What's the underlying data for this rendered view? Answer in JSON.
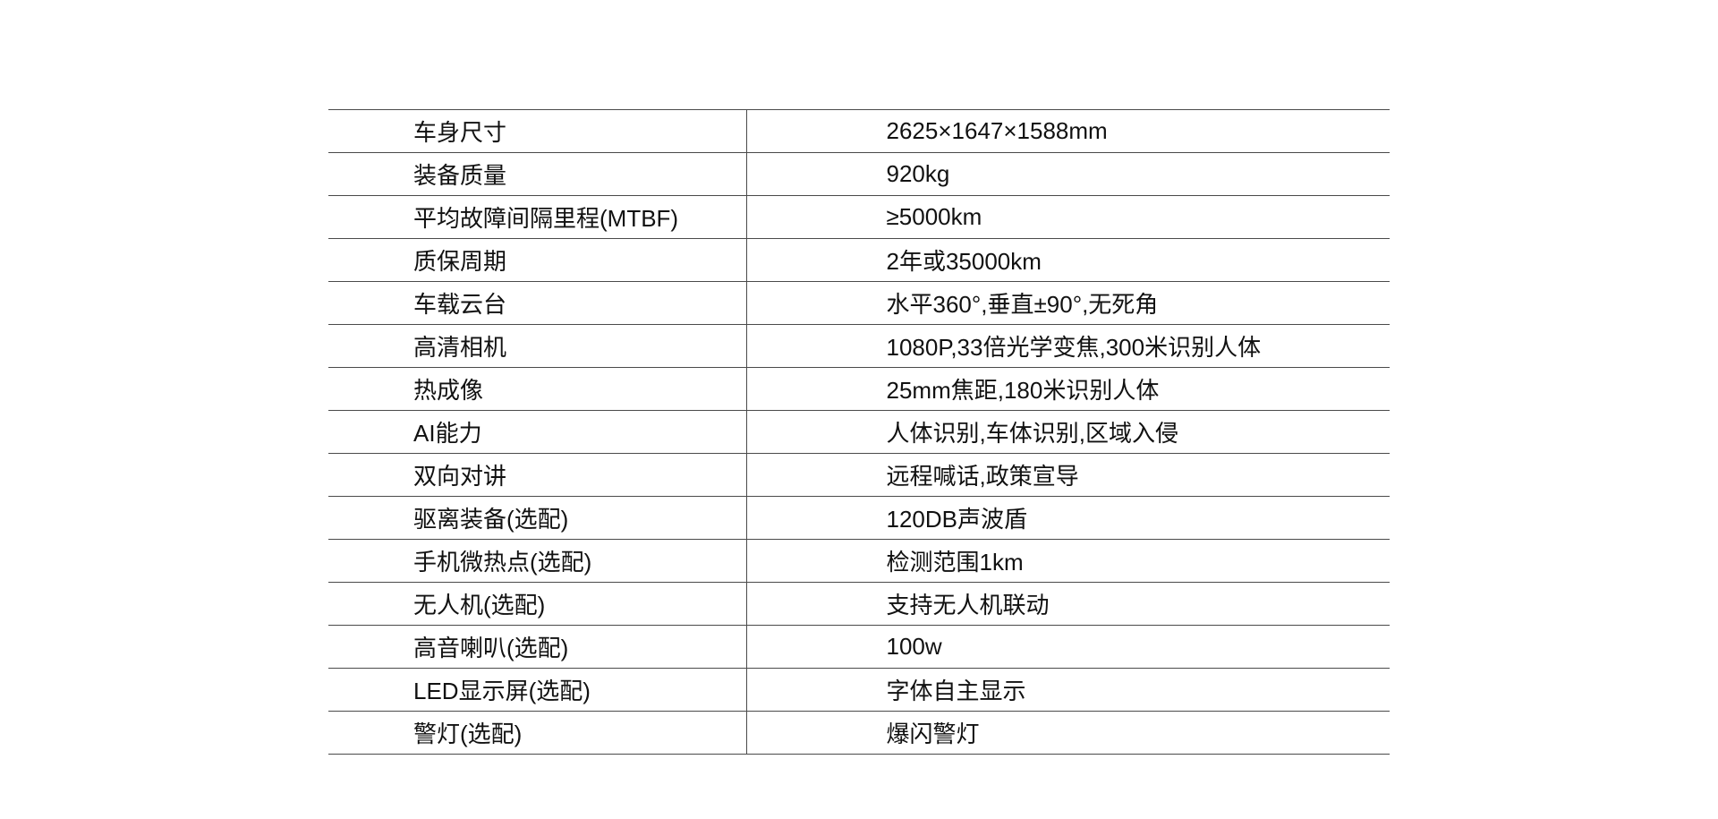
{
  "page": {
    "background_color": "#ffffff",
    "line_color": "#4a4a4a",
    "text_color": "#111111"
  },
  "table": {
    "rows": [
      {
        "label": "车身尺寸",
        "value": "2625×1647×1588mm"
      },
      {
        "label": "装备质量",
        "value": "920kg"
      },
      {
        "label": "平均故障间隔里程(MTBF)",
        "value": "≥5000km"
      },
      {
        "label": "质保周期",
        "value": "2年或35000km"
      },
      {
        "label": "车载云台",
        "value": "水平360°,垂直±90°,无死角"
      },
      {
        "label": "高清相机",
        "value": "1080P,33倍光学变焦,300米识别人体"
      },
      {
        "label": "热成像",
        "value": "25mm焦距,180米识别人体"
      },
      {
        "label": "AI能力",
        "value": "人体识别,车体识别,区域入侵"
      },
      {
        "label": "双向对讲",
        "value": "远程喊话,政策宣导"
      },
      {
        "label": "驱离装备(选配)",
        "value": "120DB声波盾"
      },
      {
        "label": "手机微热点(选配)",
        "value": "检测范围1km"
      },
      {
        "label": "无人机(选配)",
        "value": "支持无人机联动"
      },
      {
        "label": "高音喇叭(选配)",
        "value": "100w"
      },
      {
        "label": "LED显示屏(选配)",
        "value": "字体自主显示"
      },
      {
        "label": "警灯(选配)",
        "value": "爆闪警灯"
      }
    ]
  }
}
